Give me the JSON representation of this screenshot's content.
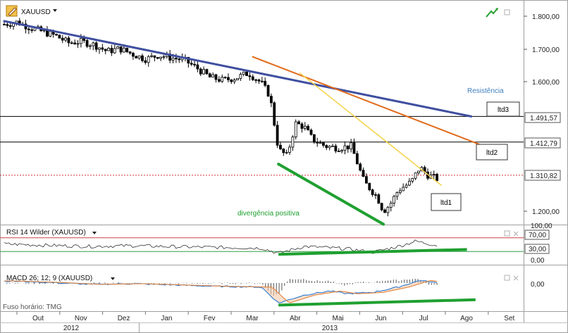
{
  "window": {
    "symbol": "XAUUSD",
    "dropdown_icon": "caret-down-icon",
    "logo_icon": "pencil-logo-icon",
    "trend_icon": "trend-arrow-icon",
    "timezone_label": "Fuso horário: TMG"
  },
  "colors": {
    "candle_up": "#ffffff",
    "candle_down": "#000000",
    "resistance_line": "#3f4fa0",
    "ltd2_line": "#e06a1a",
    "ltd1_line": "#f5d24a",
    "divergence_line": "#1fa030",
    "level_line": "#000000",
    "dotted_level": "#d03030",
    "rsi_line": "#333333",
    "rsi_upper": "#d04040",
    "rsi_lower": "#30a040",
    "macd_line": "#1a6fd0",
    "signal_line": "#e07a30"
  },
  "main_panel": {
    "y_ticks": [
      "1.800,00",
      "1.700,00",
      "1.600,00",
      "1.200,00"
    ],
    "level_labels": [
      "1.491,57",
      "1.412,79",
      "1.310,82"
    ],
    "annotations": {
      "resistencia": "Resistência",
      "ltd3": "ltd3",
      "ltd2": "ltd2",
      "ltd1": "ltd1",
      "divergencia": "divergência positiva"
    }
  },
  "rsi_panel": {
    "title": "RSI 14 Wilder (XAUUSD)",
    "y_ticks": [
      "100,00",
      "70,00",
      "30,00",
      "0,00"
    ]
  },
  "macd_panel": {
    "title": "MACD 26; 12; 9 (XAUUSD)",
    "y_ticks": [
      "0,00"
    ]
  },
  "x_axis": {
    "months": [
      "Out",
      "Nov",
      "Dez",
      "Jan",
      "Fev",
      "Mar",
      "Abr",
      "Mai",
      "Jun",
      "Jul",
      "Ago",
      "Set"
    ],
    "years": [
      "2012",
      "2013"
    ]
  },
  "chart_data": {
    "type": "candlestick",
    "symbol": "XAUUSD",
    "ylim": [
      1150,
      1850
    ],
    "months": [
      "Out",
      "Nov",
      "Dez",
      "Jan",
      "Fev",
      "Mar",
      "Abr",
      "Mai",
      "Jun",
      "Jul",
      "Ago",
      "Set"
    ],
    "price_path": [
      [
        0,
        1775
      ],
      [
        0.3,
        1782
      ],
      [
        0.6,
        1765
      ],
      [
        0.9,
        1752
      ],
      [
        1.2,
        1740
      ],
      [
        1.5,
        1718
      ],
      [
        1.8,
        1722
      ],
      [
        2.1,
        1712
      ],
      [
        2.4,
        1692
      ],
      [
        2.7,
        1700
      ],
      [
        3.0,
        1683
      ],
      [
        3.3,
        1668
      ],
      [
        3.6,
        1680
      ],
      [
        3.9,
        1672
      ],
      [
        4.2,
        1665
      ],
      [
        4.5,
        1640
      ],
      [
        4.8,
        1612
      ],
      [
        5.1,
        1603
      ],
      [
        5.4,
        1610
      ],
      [
        5.7,
        1625
      ],
      [
        6.0,
        1595
      ],
      [
        6.2,
        1555
      ],
      [
        6.4,
        1390
      ],
      [
        6.6,
        1370
      ],
      [
        6.8,
        1470
      ],
      [
        7.0,
        1460
      ],
      [
        7.2,
        1420
      ],
      [
        7.5,
        1400
      ],
      [
        7.8,
        1395
      ],
      [
        8.1,
        1400
      ],
      [
        8.4,
        1290
      ],
      [
        8.7,
        1245
      ],
      [
        8.85,
        1200
      ],
      [
        9.0,
        1220
      ],
      [
        9.2,
        1265
      ],
      [
        9.5,
        1290
      ],
      [
        9.7,
        1335
      ],
      [
        9.9,
        1310
      ],
      [
        10.1,
        1300
      ]
    ],
    "horizontal_levels": [
      1491.57,
      1412.79,
      1310.82
    ],
    "trendlines": [
      {
        "name": "Resistência",
        "label": "ltd3",
        "from": [
          0.0,
          1785
        ],
        "to": [
          10.9,
          1491.57
        ]
      },
      {
        "name": "",
        "label": "ltd2",
        "from": [
          5.8,
          1675
        ],
        "to": [
          11.2,
          1400
        ]
      },
      {
        "name": "",
        "label": "ltd1",
        "from": [
          6.9,
          1625
        ],
        "to": [
          10.2,
          1280
        ]
      },
      {
        "name": "divergência positiva",
        "label": "",
        "from": [
          6.4,
          1345
        ],
        "to": [
          8.85,
          1160
        ]
      }
    ],
    "rsi": {
      "levels": [
        70,
        30
      ],
      "ylim": [
        0,
        100
      ],
      "path": [
        [
          0,
          52
        ],
        [
          1,
          48
        ],
        [
          2,
          45
        ],
        [
          3,
          47
        ],
        [
          4,
          44
        ],
        [
          5,
          42
        ],
        [
          6,
          40
        ],
        [
          6.4,
          25
        ],
        [
          7,
          45
        ],
        [
          8,
          38
        ],
        [
          8.6,
          28
        ],
        [
          9.2,
          45
        ],
        [
          9.6,
          60
        ],
        [
          10.1,
          48
        ]
      ],
      "divergence": {
        "from": [
          6.4,
          22
        ],
        "to": [
          10.8,
          36
        ]
      }
    },
    "macd": {
      "zero": 0,
      "ylim": [
        -40,
        20
      ],
      "macd_path": [
        [
          0,
          3
        ],
        [
          1,
          1
        ],
        [
          2,
          -2
        ],
        [
          3,
          -1
        ],
        [
          4,
          -3
        ],
        [
          5,
          -5
        ],
        [
          6,
          -6
        ],
        [
          6.4,
          -30
        ],
        [
          7,
          -18
        ],
        [
          7.6,
          -12
        ],
        [
          8,
          -16
        ],
        [
          8.6,
          -14
        ],
        [
          9.2,
          -6
        ],
        [
          9.7,
          4
        ],
        [
          10.1,
          0
        ]
      ],
      "divergence": {
        "from": [
          6.4,
          -33
        ],
        "to": [
          11.0,
          -25
        ]
      }
    }
  }
}
